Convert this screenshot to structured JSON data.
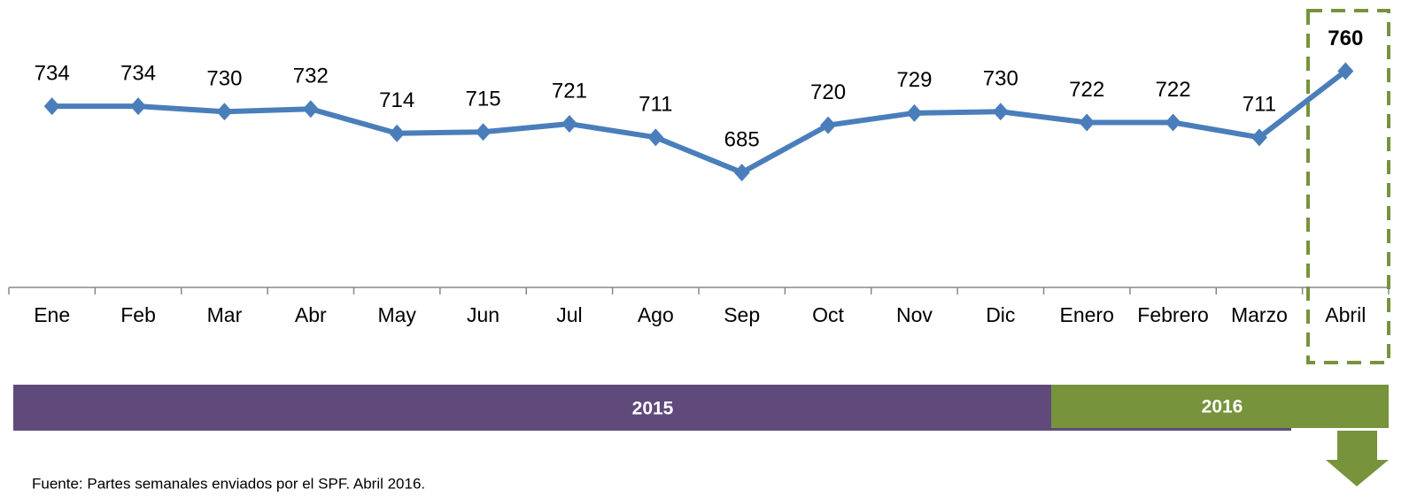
{
  "chart_data": {
    "type": "line",
    "categories": [
      "Ene",
      "Feb",
      "Mar",
      "Abr",
      "May",
      "Jun",
      "Jul",
      "Ago",
      "Sep",
      "Oct",
      "Nov",
      "Dic",
      "Enero",
      "Febrero",
      "Marzo",
      "Abril"
    ],
    "values": [
      734,
      734,
      730,
      732,
      714,
      715,
      721,
      711,
      685,
      720,
      729,
      730,
      722,
      722,
      711,
      760
    ],
    "color": "#4a7ebb",
    "ylim": [
      600,
      810
    ],
    "periods": [
      {
        "name": "2015",
        "color": "#604a7b"
      },
      {
        "name": "2016",
        "color": "#77933c"
      }
    ],
    "source": "Fuente: Partes semanales enviados por el SPF. Abril 2016."
  }
}
